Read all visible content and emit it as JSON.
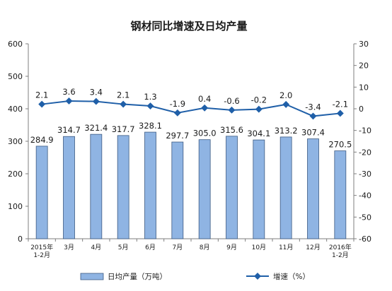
{
  "chart_data": {
    "type": "bar+line",
    "title": "钢材同比增速及日均产量",
    "categories": [
      [
        "2015年",
        "1-2月"
      ],
      [
        "3月"
      ],
      [
        "4月"
      ],
      [
        "5月"
      ],
      [
        "6月"
      ],
      [
        "7月"
      ],
      [
        "8月"
      ],
      [
        "9月"
      ],
      [
        "10月"
      ],
      [
        "11月"
      ],
      [
        "12月"
      ],
      [
        "2016年",
        "1-2月"
      ]
    ],
    "series": [
      {
        "name": "日均产量（万吨）",
        "kind": "bar",
        "axis": "left",
        "values": [
          284.9,
          314.7,
          321.4,
          317.7,
          328.1,
          297.7,
          305.0,
          315.6,
          304.1,
          313.2,
          307.4,
          270.5
        ],
        "labels": [
          "284.9",
          "314.7",
          "321.4",
          "317.7",
          "328.1",
          "297.7",
          "305.0",
          "315.6",
          "304.1",
          "313.2",
          "307.4",
          "270.5"
        ],
        "color": "#8fb4e3"
      },
      {
        "name": "增速（%）",
        "kind": "line",
        "axis": "right",
        "values": [
          2.1,
          3.6,
          3.4,
          2.1,
          1.3,
          -1.9,
          0.4,
          -0.6,
          -0.2,
          2.0,
          -3.4,
          -2.1
        ],
        "labels": [
          "2.1",
          "3.6",
          "3.4",
          "2.1",
          "1.3",
          "-1.9",
          "0.4",
          "-0.6",
          "-0.2",
          "2.0",
          "-3.4",
          "-2.1"
        ],
        "color": "#1f5fa8"
      }
    ],
    "y_left": {
      "min": 0,
      "max": 600,
      "ticks": [
        "0",
        "100",
        "200",
        "300",
        "400",
        "500",
        "600"
      ]
    },
    "y_right": {
      "min": -60,
      "max": 30,
      "ticks": [
        "30",
        "20",
        "10",
        "0",
        "-10",
        "-20",
        "-30",
        "-40",
        "-50",
        "-60"
      ]
    },
    "grid": false,
    "legend_position": "bottom"
  }
}
